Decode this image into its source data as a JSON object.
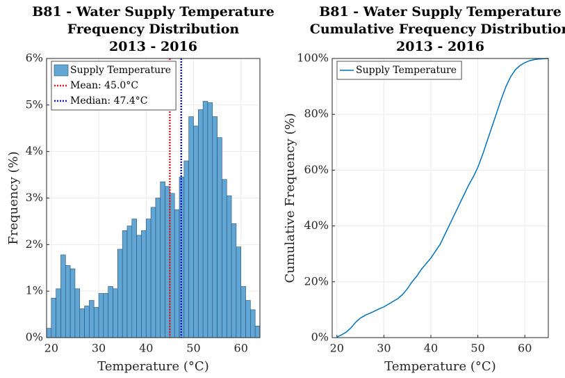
{
  "chart_data": [
    {
      "type": "histogram",
      "title": [
        "B81 - Water Supply Temperature",
        "Frequency Distribution",
        "2013 - 2016"
      ],
      "x_label": "Temperature (°C)",
      "y_label": "Frequency (%)",
      "bins": [
        19,
        20,
        21,
        22,
        23,
        24,
        25,
        26,
        27,
        28,
        29,
        30,
        31,
        32,
        33,
        34,
        35,
        36,
        37,
        38,
        39,
        40,
        41,
        42,
        43,
        44,
        45,
        46,
        47,
        48,
        49,
        50,
        51,
        52,
        53,
        54,
        55,
        56,
        57,
        58,
        59,
        60,
        61,
        62,
        63,
        64
      ],
      "series": [
        {
          "name": "Supply Temperature",
          "color": "#62a6d6",
          "values": [
            0.2,
            0.85,
            1.05,
            1.78,
            1.55,
            1.48,
            1.05,
            0.62,
            0.68,
            0.8,
            0.65,
            0.95,
            0.95,
            1.1,
            1.05,
            1.9,
            2.3,
            2.4,
            2.55,
            2.2,
            2.3,
            2.55,
            2.8,
            3.0,
            3.35,
            3.25,
            3.1,
            2.75,
            3.45,
            3.8,
            4.75,
            4.55,
            4.9,
            5.08,
            5.05,
            4.75,
            4.3,
            3.4,
            3.05,
            2.45,
            1.95,
            1.1,
            0.8,
            0.6,
            0.25
          ]
        }
      ],
      "lines": [
        {
          "name": "Mean: 45.0°C",
          "value": 45.0,
          "color": "#e8191c"
        },
        {
          "name": "Median: 47.4°C",
          "value": 47.4,
          "color": "#1515c8"
        }
      ],
      "xlim": [
        19,
        64
      ],
      "xticks": [
        20,
        30,
        40,
        50,
        60
      ],
      "ylim": [
        0,
        6
      ],
      "yticks": [
        {
          "value": 0,
          "label": "0%"
        },
        {
          "value": 1,
          "label": "1%"
        },
        {
          "value": 2,
          "label": "2%"
        },
        {
          "value": 3,
          "label": "3%"
        },
        {
          "value": 4,
          "label": "4%"
        },
        {
          "value": 5,
          "label": "5%"
        },
        {
          "value": 6,
          "label": "6%"
        }
      ],
      "grid": true,
      "legend": "top-left"
    },
    {
      "type": "line",
      "title": [
        "B81 - Water Supply Temperature",
        "Cumulative Frequency Distribution",
        "2013 - 2016"
      ],
      "x_label": "Temperature (°C)",
      "y_label": "Cumulative Frequency (%)",
      "x": [
        20,
        21,
        22,
        23,
        24,
        25,
        26,
        27,
        28,
        29,
        30,
        31,
        32,
        33,
        34,
        35,
        36,
        37,
        38,
        39,
        40,
        41,
        42,
        43,
        44,
        45,
        46,
        47,
        48,
        49,
        50,
        51,
        52,
        53,
        54,
        55,
        56,
        57,
        58,
        59,
        60,
        61,
        62,
        63,
        64,
        65
      ],
      "series": [
        {
          "name": "Supply Temperature",
          "color": "#0072bd",
          "values": [
            0.2,
            1,
            2,
            3.5,
            5.5,
            7,
            8,
            8.7,
            9.5,
            10.3,
            11,
            12,
            13,
            14,
            15.5,
            17.5,
            20,
            22,
            24.5,
            26.5,
            28.5,
            31,
            33.5,
            37,
            40.5,
            44,
            47.5,
            51,
            54.5,
            57.5,
            61,
            65.5,
            70.5,
            75.5,
            80.5,
            85.5,
            90,
            93.5,
            96,
            97.5,
            98.5,
            99.2,
            99.6,
            99.8,
            99.9,
            100
          ]
        }
      ],
      "xlim": [
        19,
        65
      ],
      "xticks": [
        20,
        30,
        40,
        50,
        60
      ],
      "ylim": [
        0,
        100
      ],
      "yticks": [
        {
          "value": 0,
          "label": "0%"
        },
        {
          "value": 20,
          "label": "20%"
        },
        {
          "value": 40,
          "label": "40%"
        },
        {
          "value": 60,
          "label": "60%"
        },
        {
          "value": 80,
          "label": "80%"
        },
        {
          "value": 100,
          "label": "100%"
        }
      ],
      "grid": true,
      "legend": "top-left"
    }
  ]
}
